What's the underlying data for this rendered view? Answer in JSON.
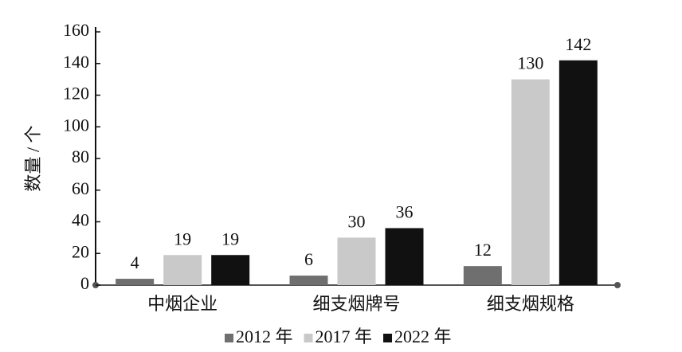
{
  "chart_data": {
    "type": "bar",
    "y_label": "数量 / 个",
    "categories": [
      "中烟企业",
      "细支烟牌号",
      "细支烟规格"
    ],
    "series": [
      {
        "name": "2012 年",
        "color": "#6f6f6f",
        "values": [
          4,
          6,
          12
        ]
      },
      {
        "name": "2017 年",
        "color": "#c9c9c9",
        "values": [
          19,
          30,
          130
        ]
      },
      {
        "name": "2022 年",
        "color": "#111111",
        "values": [
          19,
          36,
          142
        ]
      }
    ],
    "ylim": [
      0,
      160
    ],
    "yticks": [
      0,
      20,
      40,
      60,
      80,
      100,
      120,
      140,
      160
    ],
    "grid": false,
    "legend": "bottom"
  }
}
